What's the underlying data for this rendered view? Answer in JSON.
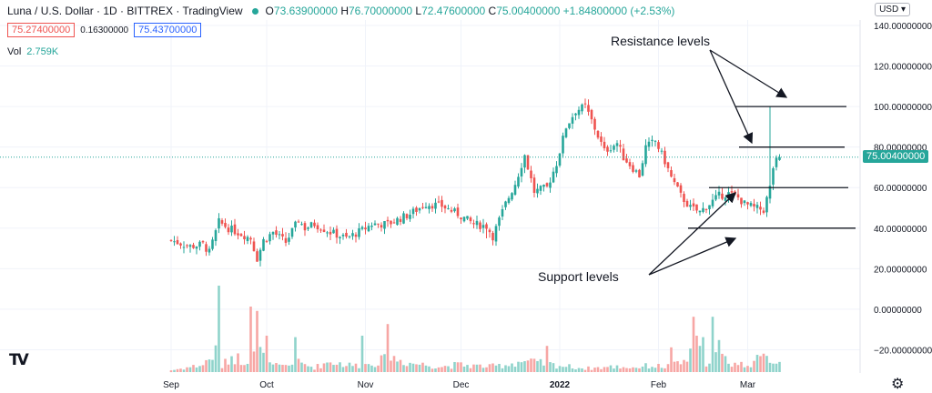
{
  "header": {
    "title": "Luna / U.S. Dollar · 1D · BITTREX · TradingView",
    "ohlc": {
      "open_label": "O",
      "open": "73.63900000",
      "high_label": "H",
      "high": "76.70000000",
      "low_label": "L",
      "low": "72.47600000",
      "close_label": "C",
      "close": "75.00400000",
      "change": "+1.84800000 (+2.53%)"
    },
    "bid": "75.27400000",
    "spread": "0.16300000",
    "ask": "75.43700000",
    "volume_label": "Vol",
    "volume": "2.759K",
    "currency": "USD ▾"
  },
  "annotations": {
    "resistance": "Resistance levels",
    "support": "Support levels"
  },
  "icons": {
    "logo": "tradingview-logo-icon",
    "settings": "gear-icon"
  },
  "colors": {
    "up": "#26a69a",
    "down": "#ef5350",
    "up_vol": "#8fd3cb",
    "down_vol": "#f7a6a4"
  },
  "chart_data": {
    "type": "candlestick",
    "title": "Luna / U.S. Dollar · 1D · BITTREX",
    "y_ticks": [
      "140.00000000",
      "120.00000000",
      "100.00000000",
      "80.00000000",
      "60.00000000",
      "40.00000000",
      "20.00000000",
      "0.00000000",
      "−20.00000000"
    ],
    "y_tick_values": [
      140,
      120,
      100,
      80,
      60,
      40,
      20,
      0,
      -20
    ],
    "ylim": [
      -30,
      149
    ],
    "x_labels": [
      "Sep",
      "Oct",
      "Nov",
      "Dec",
      "2022",
      "Feb",
      "Mar"
    ],
    "x_label_days": [
      0,
      30,
      61,
      91,
      122,
      153,
      181
    ],
    "last_price": 75.004,
    "last_price_label": "75.00400000",
    "resistance_levels": [
      100,
      80
    ],
    "support_levels": [
      60,
      40
    ],
    "close_keypoints": [
      [
        0,
        34
      ],
      [
        6,
        31
      ],
      [
        10,
        32
      ],
      [
        12,
        28
      ],
      [
        15,
        43
      ],
      [
        18,
        40
      ],
      [
        25,
        35
      ],
      [
        27,
        25
      ],
      [
        29,
        34
      ],
      [
        32,
        38
      ],
      [
        36,
        33
      ],
      [
        40,
        44
      ],
      [
        42,
        40
      ],
      [
        45,
        42
      ],
      [
        50,
        38
      ],
      [
        55,
        35
      ],
      [
        60,
        39
      ],
      [
        63,
        42
      ],
      [
        68,
        42
      ],
      [
        75,
        47
      ],
      [
        80,
        52
      ],
      [
        85,
        51
      ],
      [
        90,
        47
      ],
      [
        95,
        42
      ],
      [
        99,
        41
      ],
      [
        101,
        36
      ],
      [
        105,
        52
      ],
      [
        108,
        62
      ],
      [
        111,
        76
      ],
      [
        114,
        58
      ],
      [
        118,
        60
      ],
      [
        121,
        72
      ],
      [
        124,
        90
      ],
      [
        127,
        98
      ],
      [
        130,
        100
      ],
      [
        132,
        93
      ],
      [
        136,
        78
      ],
      [
        140,
        82
      ],
      [
        142,
        75
      ],
      [
        147,
        66
      ],
      [
        149,
        80
      ],
      [
        152,
        83
      ],
      [
        155,
        73
      ],
      [
        157,
        65
      ],
      [
        160,
        56
      ],
      [
        163,
        50
      ],
      [
        166,
        48
      ],
      [
        169,
        52
      ],
      [
        172,
        56
      ],
      [
        175,
        57
      ],
      [
        178,
        55
      ],
      [
        180,
        52
      ],
      [
        183,
        50
      ],
      [
        186,
        49
      ],
      [
        188,
        60
      ],
      [
        189,
        70
      ],
      [
        190,
        73
      ],
      [
        191,
        75
      ]
    ],
    "volume_keypoints": [
      [
        0,
        2
      ],
      [
        10,
        8
      ],
      [
        15,
        25
      ],
      [
        16,
        6
      ],
      [
        19,
        18
      ],
      [
        23,
        12
      ],
      [
        25,
        20
      ],
      [
        27,
        30
      ],
      [
        30,
        8
      ],
      [
        35,
        6
      ],
      [
        40,
        10
      ],
      [
        45,
        5
      ],
      [
        50,
        12
      ],
      [
        55,
        8
      ],
      [
        60,
        7
      ],
      [
        65,
        12
      ],
      [
        70,
        15
      ],
      [
        75,
        10
      ],
      [
        80,
        8
      ],
      [
        85,
        6
      ],
      [
        90,
        8
      ],
      [
        95,
        7
      ],
      [
        100,
        6
      ],
      [
        105,
        8
      ],
      [
        110,
        12
      ],
      [
        115,
        10
      ],
      [
        120,
        8
      ],
      [
        125,
        6
      ],
      [
        130,
        4
      ],
      [
        135,
        5
      ],
      [
        140,
        6
      ],
      [
        145,
        5
      ],
      [
        150,
        7
      ],
      [
        155,
        6
      ],
      [
        160,
        9
      ],
      [
        163,
        18
      ],
      [
        165,
        28
      ],
      [
        168,
        12
      ],
      [
        170,
        22
      ],
      [
        173,
        16
      ],
      [
        176,
        10
      ],
      [
        180,
        8
      ],
      [
        185,
        14
      ],
      [
        188,
        16
      ],
      [
        191,
        8
      ]
    ],
    "volume_spikes": {
      "15": 62,
      "25": 45,
      "27": 42,
      "30": 25,
      "39": 24,
      "60": 25,
      "68": 33,
      "118": 18,
      "157": 17,
      "164": 38,
      "167": 24,
      "170": 38,
      "172": 22
    }
  }
}
